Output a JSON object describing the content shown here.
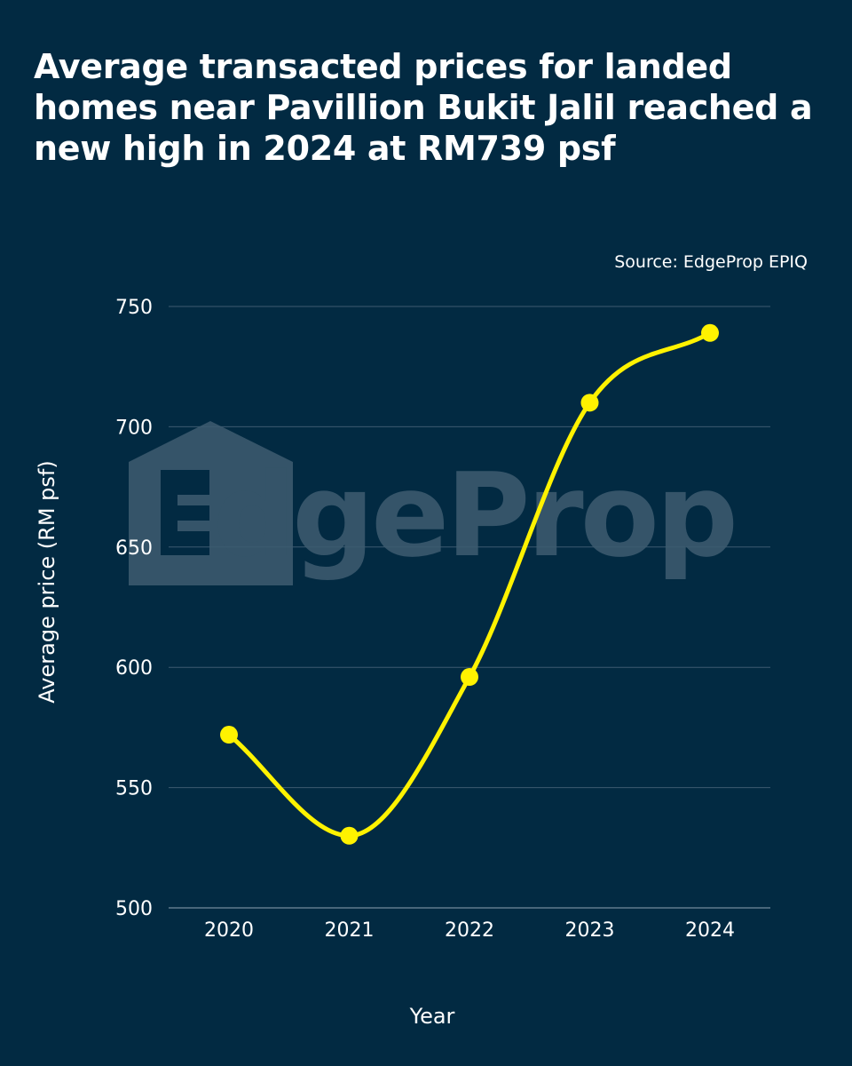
{
  "chart_data": {
    "type": "line",
    "title": "Average transacted prices for landed homes near Pavillion Bukit Jalil reached a new high in 2024 at RM739 psf",
    "source": "Source: EdgeProp EPIQ",
    "watermark": "EdgeProp",
    "categories": [
      "2020",
      "2021",
      "2022",
      "2023",
      "2024"
    ],
    "series": [
      {
        "name": "Average price",
        "values": [
          572,
          530,
          596,
          710,
          739
        ],
        "color": "#fff200"
      }
    ],
    "xlabel": "Year",
    "ylabel": "Average price (RM psf)",
    "ylim": [
      500,
      750
    ],
    "yticks": [
      500,
      550,
      600,
      650,
      700,
      750
    ],
    "grid": true,
    "background": "#022a42"
  }
}
